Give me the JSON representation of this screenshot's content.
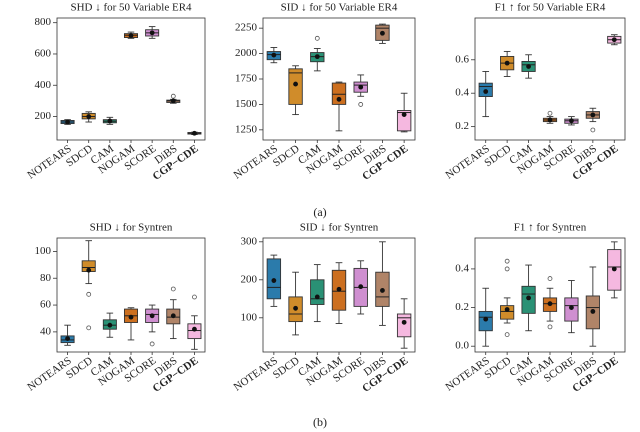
{
  "chart_data": [
    {
      "type": "box",
      "title": "SHD ↓ for 50 Variable ER4",
      "categories": [
        "NOTEARS",
        "SDCD",
        "CAM",
        "NOGAM",
        "SCORE",
        "DiBS",
        "CGP−CDE"
      ],
      "colors": [
        "#2b7bab",
        "#d08c2a",
        "#2a9175",
        "#cc6f1f",
        "#cf8fd0",
        "#b08468",
        "#f5b8e0"
      ],
      "ylim": [
        50,
        830
      ],
      "yticks": [
        200,
        400,
        600,
        800
      ],
      "boxes": [
        {
          "whislo": 150,
          "q1": 155,
          "med": 165,
          "q3": 175,
          "whishi": 180,
          "mean": 165,
          "fliers": []
        },
        {
          "whislo": 165,
          "q1": 185,
          "med": 200,
          "q3": 220,
          "whishi": 230,
          "mean": 200,
          "fliers": []
        },
        {
          "whislo": 150,
          "q1": 160,
          "med": 170,
          "q3": 180,
          "whishi": 195,
          "mean": 172,
          "fliers": []
        },
        {
          "whislo": 700,
          "q1": 705,
          "med": 720,
          "q3": 730,
          "whishi": 740,
          "mean": 718,
          "fliers": []
        },
        {
          "whislo": 700,
          "q1": 715,
          "med": 735,
          "q3": 755,
          "whishi": 775,
          "mean": 735,
          "fliers": []
        },
        {
          "whislo": 285,
          "q1": 290,
          "med": 300,
          "q3": 305,
          "whishi": 310,
          "mean": 300,
          "fliers": [
            330
          ]
        },
        {
          "whislo": 85,
          "q1": 88,
          "med": 93,
          "q3": 98,
          "whishi": 100,
          "mean": 93,
          "fliers": []
        }
      ]
    },
    {
      "type": "box",
      "title": "SID ↓ for 50 Variable ER4",
      "categories": [
        "NOTEARS",
        "SDCD",
        "CAM",
        "NOGAM",
        "SCORE",
        "DiBS",
        "CGP−CDE"
      ],
      "colors": [
        "#2b7bab",
        "#d08c2a",
        "#2a9175",
        "#cc6f1f",
        "#cf8fd0",
        "#b08468",
        "#f5b8e0"
      ],
      "ylim": [
        1150,
        2350
      ],
      "yticks": [
        1250,
        1500,
        1750,
        2000,
        2250
      ],
      "boxes": [
        {
          "whislo": 1910,
          "q1": 1940,
          "med": 1990,
          "q3": 2020,
          "whishi": 2060,
          "mean": 1985,
          "fliers": []
        },
        {
          "whislo": 1400,
          "q1": 1500,
          "med": 1810,
          "q3": 1850,
          "whishi": 1880,
          "mean": 1700,
          "fliers": []
        },
        {
          "whislo": 1830,
          "q1": 1920,
          "med": 1970,
          "q3": 2010,
          "whishi": 2050,
          "mean": 1970,
          "fliers": [
            2150
          ]
        },
        {
          "whislo": 1240,
          "q1": 1500,
          "med": 1600,
          "q3": 1710,
          "whishi": 1720,
          "mean": 1550,
          "fliers": []
        },
        {
          "whislo": 1580,
          "q1": 1620,
          "med": 1690,
          "q3": 1720,
          "whishi": 1790,
          "mean": 1670,
          "fliers": [
            1500
          ]
        },
        {
          "whislo": 2100,
          "q1": 2130,
          "med": 2250,
          "q3": 2280,
          "whishi": 2290,
          "mean": 2200,
          "fliers": []
        },
        {
          "whislo": 1230,
          "q1": 1240,
          "med": 1420,
          "q3": 1440,
          "whishi": 1610,
          "mean": 1400,
          "fliers": []
        }
      ]
    },
    {
      "type": "box",
      "title": "F1 ↑ for 50 Variable ER4",
      "categories": [
        "NOTEARS",
        "SDCD",
        "CAM",
        "NOGAM",
        "SCORE",
        "DiBS",
        "CGP−CDE"
      ],
      "colors": [
        "#2b7bab",
        "#d08c2a",
        "#2a9175",
        "#cc6f1f",
        "#cf8fd0",
        "#b08468",
        "#f5b8e0"
      ],
      "ylim": [
        0.12,
        0.85
      ],
      "yticks": [
        0.2,
        0.4,
        0.6
      ],
      "boxes": [
        {
          "whislo": 0.26,
          "q1": 0.38,
          "med": 0.44,
          "q3": 0.46,
          "whishi": 0.53,
          "mean": 0.41,
          "fliers": []
        },
        {
          "whislo": 0.5,
          "q1": 0.54,
          "med": 0.58,
          "q3": 0.62,
          "whishi": 0.65,
          "mean": 0.58,
          "fliers": []
        },
        {
          "whislo": 0.49,
          "q1": 0.53,
          "med": 0.57,
          "q3": 0.59,
          "whishi": 0.63,
          "mean": 0.56,
          "fliers": []
        },
        {
          "whislo": 0.22,
          "q1": 0.23,
          "med": 0.24,
          "q3": 0.25,
          "whishi": 0.26,
          "mean": 0.24,
          "fliers": [
            0.28
          ]
        },
        {
          "whislo": 0.21,
          "q1": 0.22,
          "med": 0.235,
          "q3": 0.245,
          "whishi": 0.26,
          "mean": 0.235,
          "fliers": []
        },
        {
          "whislo": 0.23,
          "q1": 0.25,
          "med": 0.27,
          "q3": 0.29,
          "whishi": 0.31,
          "mean": 0.27,
          "fliers": [
            0.18
          ]
        },
        {
          "whislo": 0.69,
          "q1": 0.7,
          "med": 0.72,
          "q3": 0.74,
          "whishi": 0.75,
          "mean": 0.72,
          "fliers": []
        }
      ]
    },
    {
      "type": "box",
      "title": "SHD ↓ for Syntren",
      "categories": [
        "NOTEARS",
        "SDCD",
        "CAM",
        "NOGAM",
        "SCORE",
        "DiBS",
        "CGP−CDE"
      ],
      "colors": [
        "#2b7bab",
        "#d08c2a",
        "#2a9175",
        "#cc6f1f",
        "#cf8fd0",
        "#b08468",
        "#f5b8e0"
      ],
      "ylim": [
        25,
        110
      ],
      "yticks": [
        40,
        60,
        80,
        100
      ],
      "boxes": [
        {
          "whislo": 30,
          "q1": 32,
          "med": 34,
          "q3": 37,
          "whishi": 45,
          "mean": 35,
          "fliers": []
        },
        {
          "whislo": 76,
          "q1": 85,
          "med": 88,
          "q3": 93,
          "whishi": 108,
          "mean": 86,
          "fliers": [
            68,
            43
          ]
        },
        {
          "whislo": 36,
          "q1": 42,
          "med": 45,
          "q3": 49,
          "whishi": 54,
          "mean": 45,
          "fliers": []
        },
        {
          "whislo": 34,
          "q1": 47,
          "med": 52,
          "q3": 57,
          "whishi": 58,
          "mean": 51,
          "fliers": []
        },
        {
          "whislo": 40,
          "q1": 47,
          "med": 53,
          "q3": 57,
          "whishi": 60,
          "mean": 52,
          "fliers": [
            31
          ]
        },
        {
          "whislo": 35,
          "q1": 46,
          "med": 51,
          "q3": 57,
          "whishi": 64,
          "mean": 52,
          "fliers": [
            72
          ]
        },
        {
          "whislo": 27,
          "q1": 35,
          "med": 41,
          "q3": 46,
          "whishi": 52,
          "mean": 42,
          "fliers": [
            66
          ]
        }
      ]
    },
    {
      "type": "box",
      "title": "SID ↓ for Syntren",
      "categories": [
        "NOTEARS",
        "SDCD",
        "CAM",
        "NOGAM",
        "SCORE",
        "DiBS",
        "CGP−CDE"
      ],
      "colors": [
        "#2b7bab",
        "#d08c2a",
        "#2a9175",
        "#cc6f1f",
        "#cf8fd0",
        "#b08468",
        "#f5b8e0"
      ],
      "ylim": [
        10,
        310
      ],
      "yticks": [
        100,
        200,
        300
      ],
      "boxes": [
        {
          "whislo": 130,
          "q1": 150,
          "med": 180,
          "q3": 255,
          "whishi": 265,
          "mean": 198,
          "fliers": []
        },
        {
          "whislo": 55,
          "q1": 90,
          "med": 110,
          "q3": 155,
          "whishi": 220,
          "mean": 125,
          "fliers": []
        },
        {
          "whislo": 90,
          "q1": 135,
          "med": 150,
          "q3": 200,
          "whishi": 240,
          "mean": 155,
          "fliers": []
        },
        {
          "whislo": 85,
          "q1": 120,
          "med": 170,
          "q3": 225,
          "whishi": 245,
          "mean": 175,
          "fliers": []
        },
        {
          "whislo": 110,
          "q1": 130,
          "med": 180,
          "q3": 230,
          "whishi": 250,
          "mean": 182,
          "fliers": []
        },
        {
          "whislo": 80,
          "q1": 130,
          "med": 155,
          "q3": 220,
          "whishi": 300,
          "mean": 172,
          "fliers": []
        },
        {
          "whislo": 20,
          "q1": 50,
          "med": 100,
          "q3": 110,
          "whishi": 150,
          "mean": 88,
          "fliers": []
        }
      ]
    },
    {
      "type": "box",
      "title": "F1 ↑ for Syntren",
      "categories": [
        "NOTEARS",
        "SDCD",
        "CAM",
        "NOGAM",
        "SCORE",
        "DiBS",
        "CGP−CDE"
      ],
      "colors": [
        "#2b7bab",
        "#d08c2a",
        "#2a9175",
        "#cc6f1f",
        "#cf8fd0",
        "#b08468",
        "#f5b8e0"
      ],
      "ylim": [
        -0.03,
        0.56
      ],
      "yticks": [
        {
          "value": 0,
          "label": "0.0"
        },
        0.2,
        0.4
      ],
      "boxes": [
        {
          "whislo": 0,
          "q1": 0.08,
          "med": 0.15,
          "q3": 0.18,
          "whishi": 0.3,
          "mean": 0.14,
          "fliers": []
        },
        {
          "whislo": 0.12,
          "q1": 0.14,
          "med": 0.18,
          "q3": 0.21,
          "whishi": 0.25,
          "mean": 0.19,
          "fliers": [
            0.44,
            0.4,
            0.06
          ]
        },
        {
          "whislo": 0.08,
          "q1": 0.17,
          "med": 0.27,
          "q3": 0.31,
          "whishi": 0.42,
          "mean": 0.25,
          "fliers": []
        },
        {
          "whislo": 0.13,
          "q1": 0.18,
          "med": 0.22,
          "q3": 0.25,
          "whishi": 0.3,
          "mean": 0.22,
          "fliers": [
            0.35,
            0.1
          ]
        },
        {
          "whislo": 0.07,
          "q1": 0.13,
          "med": 0.21,
          "q3": 0.25,
          "whishi": 0.34,
          "mean": 0.2,
          "fliers": []
        },
        {
          "whislo": 0,
          "q1": 0.09,
          "med": 0.2,
          "q3": 0.26,
          "whishi": 0.41,
          "mean": 0.18,
          "fliers": []
        },
        {
          "whislo": 0.25,
          "q1": 0.29,
          "med": 0.41,
          "q3": 0.5,
          "whishi": 0.54,
          "mean": 0.4,
          "fliers": []
        }
      ]
    }
  ],
  "captions": [
    "(a)",
    "(b)"
  ]
}
